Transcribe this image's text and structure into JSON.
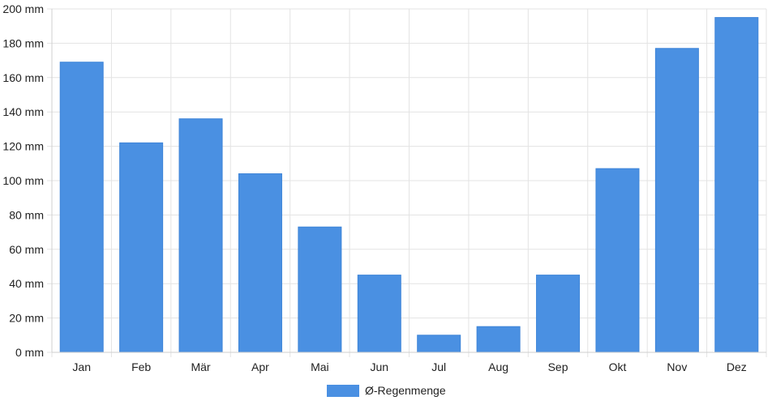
{
  "chart_data": {
    "type": "bar",
    "categories": [
      "Jan",
      "Feb",
      "Mär",
      "Apr",
      "Mai",
      "Jun",
      "Jul",
      "Aug",
      "Sep",
      "Okt",
      "Nov",
      "Dez"
    ],
    "series": [
      {
        "name": "Ø-Regenmenge",
        "values": [
          169,
          122,
          136,
          104,
          73,
          45,
          10,
          15,
          45,
          107,
          177,
          195
        ],
        "color": "#4a90e2"
      }
    ],
    "y_unit": "mm",
    "y_ticks": [
      "0 mm",
      "20 mm",
      "40 mm",
      "60 mm",
      "80 mm",
      "100 mm",
      "120 mm",
      "140 mm",
      "160 mm",
      "180 mm",
      "200 mm"
    ],
    "ylim": [
      0,
      200
    ],
    "grid": true,
    "legend_position": "bottom"
  }
}
